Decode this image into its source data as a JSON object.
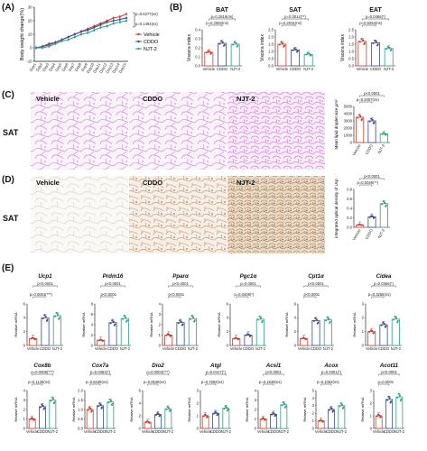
{
  "panels": {
    "A": "(A)",
    "B": "(B)",
    "C": "(C)",
    "D": "(D)",
    "E": "(E)"
  },
  "colors": {
    "vehicle": "#c8402e",
    "cddo": "#3b4a8a",
    "njt2": "#2f9e8b"
  },
  "groups": [
    "Vehicle",
    "CDDO",
    "NJT-2"
  ],
  "row_labels": {
    "sat_c": "SAT",
    "sat_d": "SAT"
  },
  "image_labels": {
    "vehicle": "Vehicle",
    "cddo": "CDDO",
    "njt2": "NJT-2"
  },
  "chart_data": [
    {
      "type": "line",
      "panel": "A",
      "ylabel": "Body weight change(%)",
      "x": [
        "Day1",
        "Day2",
        "Day3",
        "Day4",
        "Day5",
        "Day6",
        "Day7",
        "Day8",
        "Day9",
        "Day10",
        "Day11",
        "Day12",
        "Day13",
        "Day14",
        "Day15"
      ],
      "ylim": [
        -10,
        30
      ],
      "yticks": [
        -10,
        0,
        10,
        20,
        30
      ],
      "series": [
        {
          "name": "Vehicle",
          "values": [
            0,
            1,
            2,
            4,
            6,
            8,
            10,
            12,
            14,
            16,
            18,
            20,
            22,
            23,
            25
          ]
        },
        {
          "name": "CDDO",
          "values": [
            0,
            1,
            3,
            4,
            6,
            8,
            10,
            12,
            13,
            15,
            17,
            19,
            20,
            21,
            22
          ]
        },
        {
          "name": "NJT-2",
          "values": [
            0,
            0,
            1,
            3,
            5,
            6,
            8,
            10,
            11,
            13,
            15,
            16,
            18,
            19,
            20
          ]
        }
      ],
      "annotations": [
        "p=0.6277(ns)",
        "p=0.1494(ns)"
      ],
      "legend": "right"
    },
    {
      "type": "bar",
      "panel": "B",
      "title": "BAT",
      "ylabel": "Viscera index",
      "categories": [
        "Vehicle",
        "CDDO",
        "NJT-2"
      ],
      "values": [
        0.15,
        0.25,
        0.24
      ],
      "ylim": [
        0,
        0.4
      ],
      "yticks": [
        "0.0",
        "0.1",
        "0.2",
        "0.3",
        "0.4"
      ],
      "pvalues": [
        "p=0.2819(ns)",
        "p=0.2083(ns)"
      ]
    },
    {
      "type": "bar",
      "panel": "B",
      "title": "SAT",
      "ylabel": "Viscera index",
      "categories": [
        "Vehicle",
        "CDDO",
        "NJT-2"
      ],
      "values": [
        1.5,
        1.1,
        0.8
      ],
      "ylim": [
        0,
        2.5
      ],
      "yticks": [
        "0.0",
        "0.5",
        "1.0",
        "1.5",
        "2.0",
        "2.5"
      ],
      "pvalues": [
        "p=0.0014(**)",
        "p=0.2031(ns)"
      ]
    },
    {
      "type": "bar",
      "panel": "B",
      "title": "EAT",
      "ylabel": "Viscera index",
      "categories": [
        "Vehicle",
        "CDDO",
        "NJT-2"
      ],
      "values": [
        1.7,
        1.6,
        1.2
      ],
      "ylim": [
        0,
        2.5
      ],
      "yticks": [
        "0.0",
        "0.5",
        "1.0",
        "1.5",
        "2.0",
        "2.5"
      ],
      "pvalues": [
        "p=0.0466(*)",
        "p=0.9254(ns)"
      ]
    },
    {
      "type": "bar",
      "panel": "C",
      "ylabel": "Mean lipid droplet size μm²",
      "categories": [
        "Vehicle",
        "CDDO",
        "NJT-2"
      ],
      "values": [
        3500,
        3000,
        1200
      ],
      "ylim": [
        0,
        5000
      ],
      "yticks": [
        "0",
        "1000",
        "2000",
        "3000",
        "4000",
        "5000"
      ],
      "pvalues": [
        "p<0.0001",
        "p=0.2007(ns)"
      ]
    },
    {
      "type": "bar",
      "panel": "D",
      "ylabel": "integrated optical density of Ucp",
      "categories": [
        "Vehicle",
        "CDDO",
        "NJT-2"
      ],
      "values": [
        0.05,
        0.22,
        0.5
      ],
      "ylim": [
        0,
        0.8
      ],
      "yticks": [
        "0.0",
        "0.2",
        "0.4",
        "0.6",
        "0.8"
      ],
      "pvalues": [
        "p<0.0001",
        "p=0.0045(**)"
      ]
    },
    {
      "type": "bar",
      "panel": "E",
      "title": "Ucp1",
      "ylabel": "Relative mRNA",
      "categories": [
        "Vehicle",
        "CDDO",
        "NJT-2"
      ],
      "values": [
        1.0,
        4.0,
        4.3
      ],
      "ylim": [
        0,
        6
      ],
      "yticks": [
        "0",
        "2",
        "4",
        "6"
      ],
      "pvalues": [
        "p<0.0001",
        "p=0.0001(***)"
      ]
    },
    {
      "type": "bar",
      "panel": "E",
      "title": "Prdm16",
      "ylabel": "Relative mRNA",
      "categories": [
        "Vehicle",
        "CDDO",
        "NJT-2"
      ],
      "values": [
        1.0,
        4.4,
        5.2
      ],
      "ylim": [
        0,
        8
      ],
      "yticks": [
        "0",
        "2",
        "4",
        "6",
        "8"
      ],
      "pvalues": [
        "p<0.0001",
        "p<0.0001"
      ]
    },
    {
      "type": "bar",
      "panel": "E",
      "title": "Pparα",
      "ylabel": "Relative mRNA",
      "categories": [
        "Vehicle",
        "CDDO",
        "NJT-2"
      ],
      "values": [
        1.0,
        2.2,
        2.6
      ],
      "ylim": [
        0,
        4
      ],
      "yticks": [
        "0",
        "1",
        "2",
        "3",
        "4"
      ],
      "pvalues": [
        "p<0.0001",
        "p<0.0001"
      ]
    },
    {
      "type": "bar",
      "panel": "E",
      "title": "Pgc1α",
      "ylabel": "Relative mRNA",
      "categories": [
        "Vehicle",
        "CDDO",
        "NJT-2"
      ],
      "values": [
        1.0,
        1.5,
        3.8
      ],
      "ylim": [
        0,
        6
      ],
      "yticks": [
        "0",
        "2",
        "4",
        "6"
      ],
      "pvalues": [
        "p=0.0001",
        "p=0.0409(*)"
      ]
    },
    {
      "type": "bar",
      "panel": "E",
      "title": "Cpt1α",
      "ylabel": "Relative mRNA",
      "categories": [
        "Vehicle",
        "CDDO",
        "NJT-2"
      ],
      "values": [
        1.0,
        3.6,
        3.7
      ],
      "ylim": [
        0,
        6
      ],
      "yticks": [
        "0",
        "2",
        "4",
        "6"
      ],
      "pvalues": [
        "p<0.0001",
        "p<0.0001"
      ]
    },
    {
      "type": "bar",
      "panel": "E",
      "title": "Cidea",
      "ylabel": "Relative mRNA",
      "categories": [
        "Vehicle",
        "CDDO",
        "NJT-2"
      ],
      "values": [
        1.0,
        1.5,
        1.9
      ],
      "ylim": [
        0,
        3
      ],
      "yticks": [
        "0",
        "1",
        "2",
        "3"
      ],
      "pvalues": [
        "p=0.0356(*)",
        "p=0.3256(ns)"
      ]
    },
    {
      "type": "bar",
      "panel": "E",
      "title": "Cox8b",
      "ylabel": "Relative mRNA",
      "categories": [
        "Vehicle",
        "CDDO",
        "NJT-2"
      ],
      "values": [
        1.0,
        2.3,
        3.0
      ],
      "ylim": [
        0,
        4
      ],
      "yticks": [
        "0",
        "1",
        "2",
        "3",
        "4"
      ],
      "pvalues": [
        "p=0.0008(***)",
        "p=0.1125(ns)"
      ]
    },
    {
      "type": "bar",
      "panel": "E",
      "title": "Cox7a",
      "ylabel": "Relative mRNA",
      "categories": [
        "Vehicle",
        "CDDO",
        "NJT-2"
      ],
      "values": [
        1.0,
        1.2,
        1.4
      ],
      "ylim": [
        0,
        2
      ],
      "yticks": [
        "0.0",
        "0.5",
        "1.0",
        "1.5",
        "2.0"
      ],
      "pvalues": [
        "p=0.0353(*)",
        "p=0.8436(ns)"
      ]
    },
    {
      "type": "bar",
      "panel": "E",
      "title": "Dio2",
      "ylabel": "Relative mRNA",
      "categories": [
        "Vehicle",
        "CDDO",
        "NJT-2"
      ],
      "values": [
        1.0,
        2.2,
        3.1
      ],
      "ylim": [
        0,
        6
      ],
      "yticks": [
        "0",
        "2",
        "4",
        "6"
      ],
      "pvalues": [
        "p=0.0004(***)",
        "p=0.0546(ns)"
      ]
    },
    {
      "type": "bar",
      "panel": "E",
      "title": "Atgl",
      "ylabel": "Relative mRNA",
      "categories": [
        "Vehicle",
        "CDDO",
        "NJT-2"
      ],
      "values": [
        1.0,
        1.2,
        1.6
      ],
      "ylim": [
        0,
        3
      ],
      "yticks": [
        "0",
        "1",
        "2",
        "3"
      ],
      "pvalues": [
        "p=0.0417(*)",
        "p=0.7692(ns)"
      ]
    },
    {
      "type": "bar",
      "panel": "E",
      "title": "Acsl1",
      "ylabel": "Relative mRNA",
      "categories": [
        "Vehicle",
        "CDDO",
        "NJT-2"
      ],
      "values": [
        1.0,
        1.5,
        2.5
      ],
      "ylim": [
        0,
        4
      ],
      "yticks": [
        "0",
        "1",
        "2",
        "3",
        "4"
      ],
      "pvalues": [
        "p<0.0001",
        "p=0.1849(ns)"
      ]
    },
    {
      "type": "bar",
      "panel": "E",
      "title": "Acox",
      "ylabel": "Relative mRNA",
      "categories": [
        "Vehicle",
        "CDDO",
        "NJT-2"
      ],
      "values": [
        1.0,
        2.5,
        3.0
      ],
      "ylim": [
        0,
        5
      ],
      "yticks": [
        "0",
        "1",
        "2",
        "3",
        "4",
        "5"
      ],
      "pvalues": [
        "p=0.0301(*)",
        "p=0.1063(ns)"
      ]
    },
    {
      "type": "bar",
      "panel": "E",
      "title": "Acot11",
      "ylabel": "Relative mRNA",
      "categories": [
        "Vehicle",
        "CDDO",
        "NJT-2"
      ],
      "values": [
        1.0,
        2.3,
        2.5
      ],
      "ylim": [
        0,
        3
      ],
      "yticks": [
        "0",
        "1",
        "2",
        "3"
      ],
      "pvalues": [
        "p<0.0001",
        "p=0.0001"
      ]
    }
  ]
}
